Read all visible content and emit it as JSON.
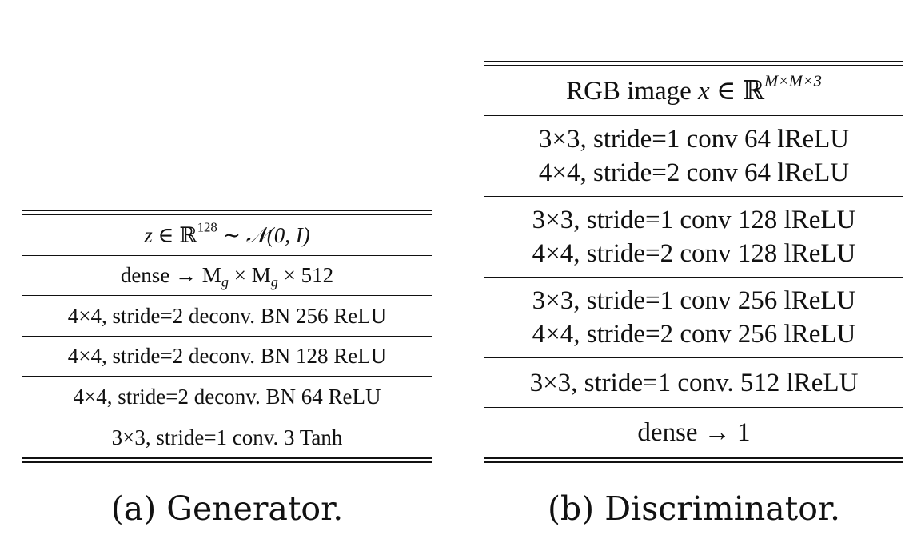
{
  "generator": {
    "rows": [
      {
        "pre": "z ∈ ",
        "bb": "ℝ",
        "sup": "128",
        "post": " ∼ 𝒩(0, I)"
      },
      {
        "pre": "dense → M",
        "sub1": "g",
        "mid": " × M",
        "sub2": "g",
        "post": " × 512"
      },
      {
        "text": "4×4, stride=2 deconv. BN 256 ReLU"
      },
      {
        "text": "4×4, stride=2 deconv. BN 128 ReLU"
      },
      {
        "text": "4×4, stride=2 deconv. BN 64 ReLU"
      },
      {
        "text": "3×3, stride=1 conv. 3 Tanh"
      }
    ],
    "caption": "(a) Generator."
  },
  "discriminator": {
    "rows": [
      {
        "pre": "RGB image ",
        "math": "x",
        "mid": " ∈ ",
        "bb": "ℝ",
        "sup": "M×M×3"
      },
      {
        "line1": "3×3, stride=1 conv 64 lReLU",
        "line2": "4×4, stride=2 conv 64 lReLU"
      },
      {
        "line1": "3×3, stride=1 conv 128 lReLU",
        "line2": "4×4, stride=2 conv 128 lReLU"
      },
      {
        "line1": "3×3, stride=1 conv 256 lReLU",
        "line2": "4×4, stride=2 conv 256 lReLU"
      },
      {
        "text": "3×3, stride=1 conv. 512 lReLU"
      },
      {
        "text": "dense → 1"
      }
    ],
    "caption": "(b) Discriminator."
  }
}
